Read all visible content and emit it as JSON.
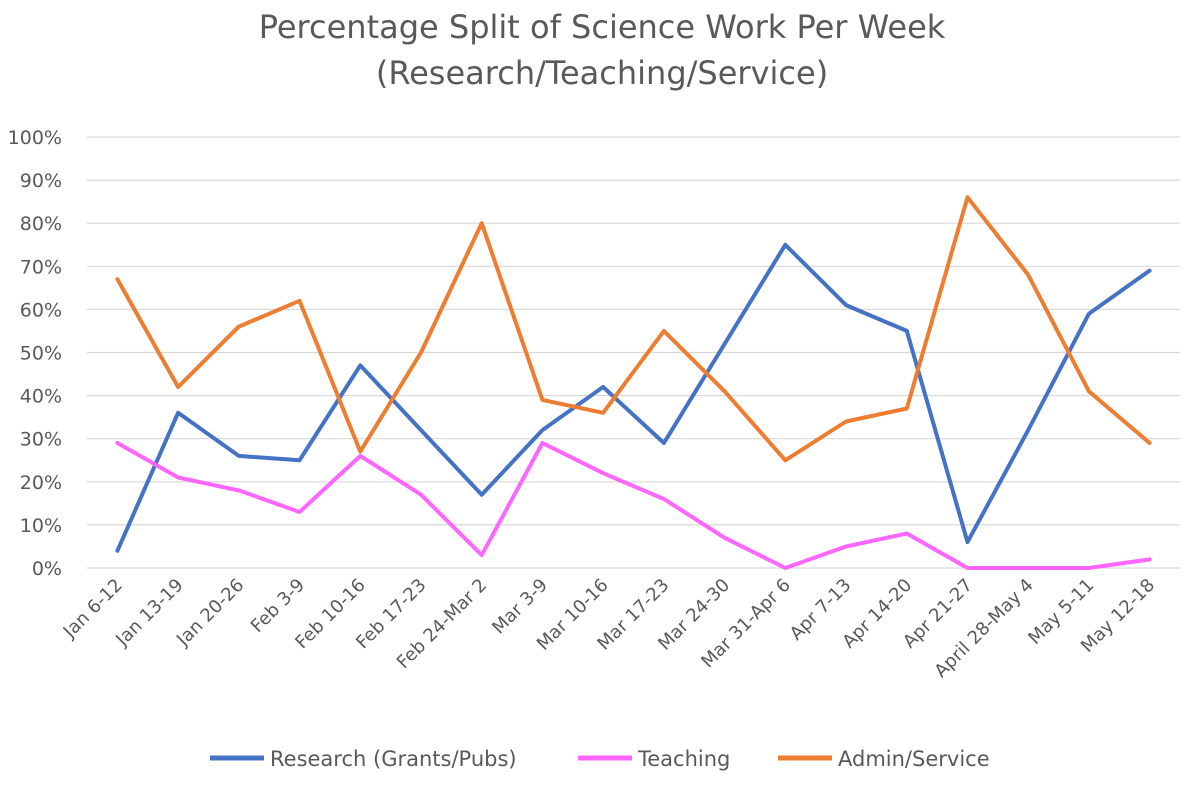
{
  "chart_data": {
    "type": "line",
    "title": "Percentage Split of Science Work Per Week",
    "subtitle": "(Research/Teaching/Service)",
    "categories": [
      "Jan 6-12",
      "Jan 13-19",
      "Jan 20-26",
      "Feb 3-9",
      "Feb 10-16",
      "Feb 17-23",
      "Feb 24-Mar 2",
      "Mar 3-9",
      "Mar 10-16",
      "Mar 17-23",
      "Mar 24-30",
      "Mar 31-Apr 6",
      "Apr 7-13",
      "Apr 14-20",
      "Apr 21-27",
      "April 28-May 4",
      "May 5-11",
      "May 12-18"
    ],
    "ylim": [
      0,
      100
    ],
    "yticks": [
      0,
      10,
      20,
      30,
      40,
      50,
      60,
      70,
      80,
      90,
      100
    ],
    "ytick_labels": [
      "0%",
      "10%",
      "20%",
      "30%",
      "40%",
      "50%",
      "60%",
      "70%",
      "80%",
      "90%",
      "100%"
    ],
    "grid": true,
    "legend_position": "bottom",
    "series": [
      {
        "name": "Research (Grants/Pubs)",
        "color": "#4472C4",
        "values": [
          4,
          36,
          26,
          25,
          47,
          32,
          17,
          32,
          42,
          29,
          52,
          75,
          61,
          55,
          6,
          32,
          59,
          69
        ]
      },
      {
        "name": "Teaching",
        "color": "#FF66FF",
        "values": [
          29,
          21,
          18,
          13,
          26,
          17,
          3,
          29,
          22,
          16,
          7,
          0,
          5,
          8,
          0,
          0,
          0,
          2
        ]
      },
      {
        "name": "Admin/Service",
        "color": "#ED7D31",
        "values": [
          67,
          42,
          56,
          62,
          27,
          50,
          80,
          39,
          36,
          55,
          41,
          25,
          34,
          37,
          86,
          68,
          41,
          29
        ]
      }
    ]
  }
}
